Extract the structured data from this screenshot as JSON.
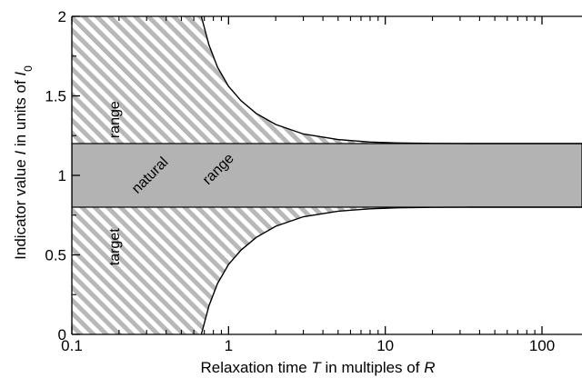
{
  "chart_data": {
    "type": "area",
    "title": "",
    "xlabel": "Relaxation time T in multiples of R",
    "xlabel_parts": [
      {
        "text": "Relaxation time ",
        "italic": false
      },
      {
        "text": "T",
        "italic": true
      },
      {
        "text": " in multiples of ",
        "italic": false
      },
      {
        "text": "R",
        "italic": true
      }
    ],
    "ylabel": "Indicator value I in units of I0",
    "ylabel_parts": [
      {
        "text": "Indicator value ",
        "italic": false,
        "sub": false
      },
      {
        "text": "I",
        "italic": true,
        "sub": false
      },
      {
        "text": " in units of ",
        "italic": false,
        "sub": false
      },
      {
        "text": "I",
        "italic": true,
        "sub": false
      },
      {
        "text": "0",
        "italic": false,
        "sub": true
      }
    ],
    "xscale": "log",
    "xlim": [
      0.1,
      180
    ],
    "ylim": [
      0,
      2
    ],
    "xticks": [
      {
        "value": 0.1,
        "label": "0.1"
      },
      {
        "value": 1,
        "label": "1"
      },
      {
        "value": 10,
        "label": "10"
      },
      {
        "value": 100,
        "label": "100"
      }
    ],
    "yticks": [
      {
        "value": 0,
        "label": "0"
      },
      {
        "value": 0.5,
        "label": "0.5"
      },
      {
        "value": 1,
        "label": "1"
      },
      {
        "value": 1.5,
        "label": "1.5"
      },
      {
        "value": 2,
        "label": "2"
      }
    ],
    "natural_range": {
      "lower": 0.8,
      "upper": 1.2,
      "fill": "#b3b3b3"
    },
    "target_range": {
      "fill": "hatched",
      "hatch_color": "#b8b8b8",
      "upper_boundary": {
        "x": [
          0.67,
          0.75,
          0.85,
          1.0,
          1.2,
          1.5,
          2,
          3,
          5,
          8,
          12,
          20,
          35,
          60,
          100,
          180
        ],
        "y": [
          2.0,
          1.82,
          1.68,
          1.56,
          1.47,
          1.39,
          1.32,
          1.26,
          1.225,
          1.21,
          1.204,
          1.201,
          1.2,
          1.2,
          1.2,
          1.2
        ]
      },
      "lower_boundary": {
        "x": [
          0.67,
          0.75,
          0.85,
          1.0,
          1.2,
          1.5,
          2,
          3,
          5,
          8,
          12,
          20,
          35,
          60,
          100,
          180
        ],
        "y": [
          0.0,
          0.18,
          0.32,
          0.44,
          0.53,
          0.61,
          0.68,
          0.74,
          0.775,
          0.79,
          0.796,
          0.799,
          0.8,
          0.8,
          0.8,
          0.8
        ]
      }
    },
    "annotations": [
      {
        "text": "range",
        "x": 0.2,
        "y": 1.35,
        "rotation": -90
      },
      {
        "text": "natural",
        "x": 0.33,
        "y": 0.98,
        "rotation": -45
      },
      {
        "text": "range",
        "x": 0.9,
        "y": 1.02,
        "rotation": -45
      },
      {
        "text": "target",
        "x": 0.2,
        "y": 0.55,
        "rotation": -90
      }
    ],
    "grid": false,
    "legend": "none"
  }
}
